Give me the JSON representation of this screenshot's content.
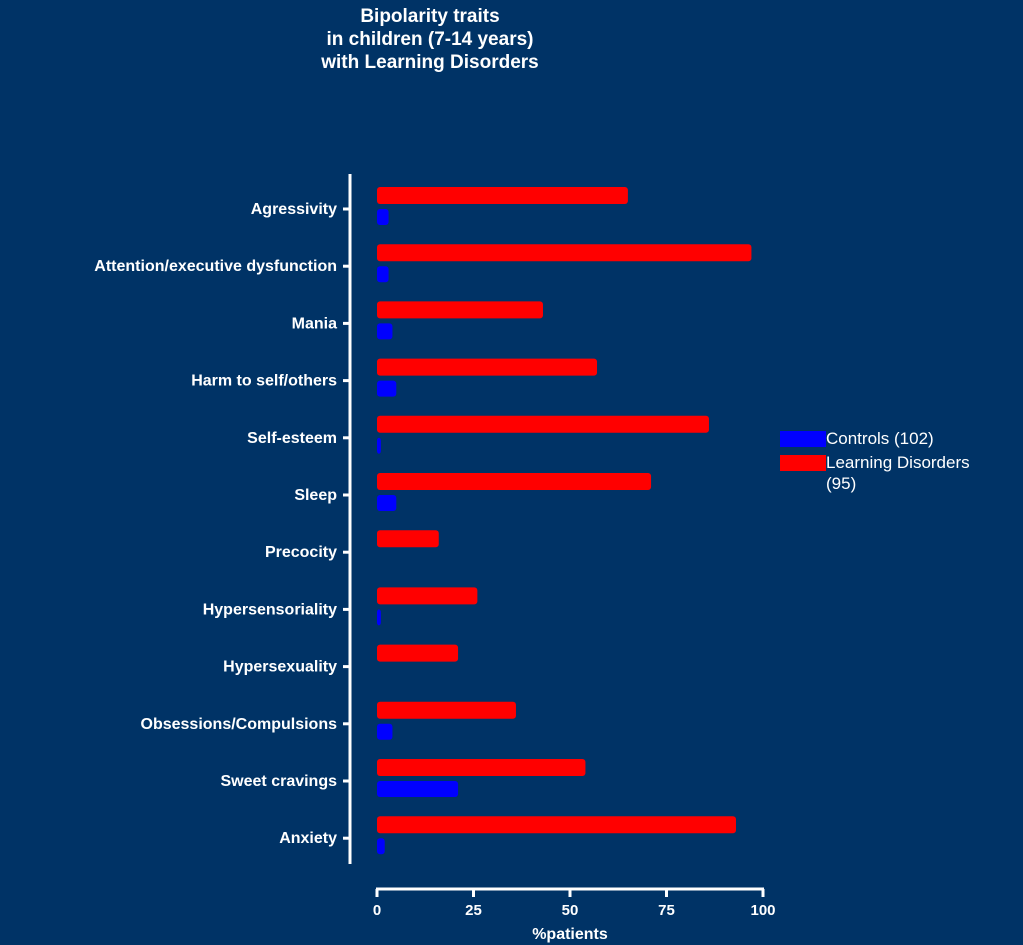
{
  "chart_data": {
    "type": "bar",
    "orientation": "horizontal",
    "title_lines": [
      "Bipolarity traits",
      "in children (7-14 years)",
      "with Learning Disorders"
    ],
    "xlabel": "%patients",
    "ylabel": "",
    "xlim": [
      0,
      100
    ],
    "xticks": [
      "0",
      "25",
      "50",
      "75",
      "100"
    ],
    "grid": false,
    "legend_position": "right",
    "categories": [
      "Agressivity",
      "Attention/executive dysfunction",
      "Mania",
      "Harm to self/others",
      "Self-esteem",
      "Sleep",
      "Precocity",
      "Hypersensoriality",
      "Hypersexuality",
      "Obsessions/Compulsions",
      "Sweet cravings",
      "Anxiety"
    ],
    "series": [
      {
        "name": "Learning Disorders (95)",
        "legend_lines": [
          "Learning Disorders",
          "(95)"
        ],
        "color": "#ff0000",
        "values": [
          65,
          97,
          43,
          57,
          86,
          71,
          16,
          26,
          21,
          36,
          54,
          93
        ]
      },
      {
        "name": "Controls (102)",
        "legend_lines": [
          "Controls (102)"
        ],
        "color": "#0000ff",
        "values": [
          3,
          3,
          4,
          5,
          1,
          5,
          0,
          1,
          0,
          4,
          21,
          2
        ]
      }
    ]
  }
}
